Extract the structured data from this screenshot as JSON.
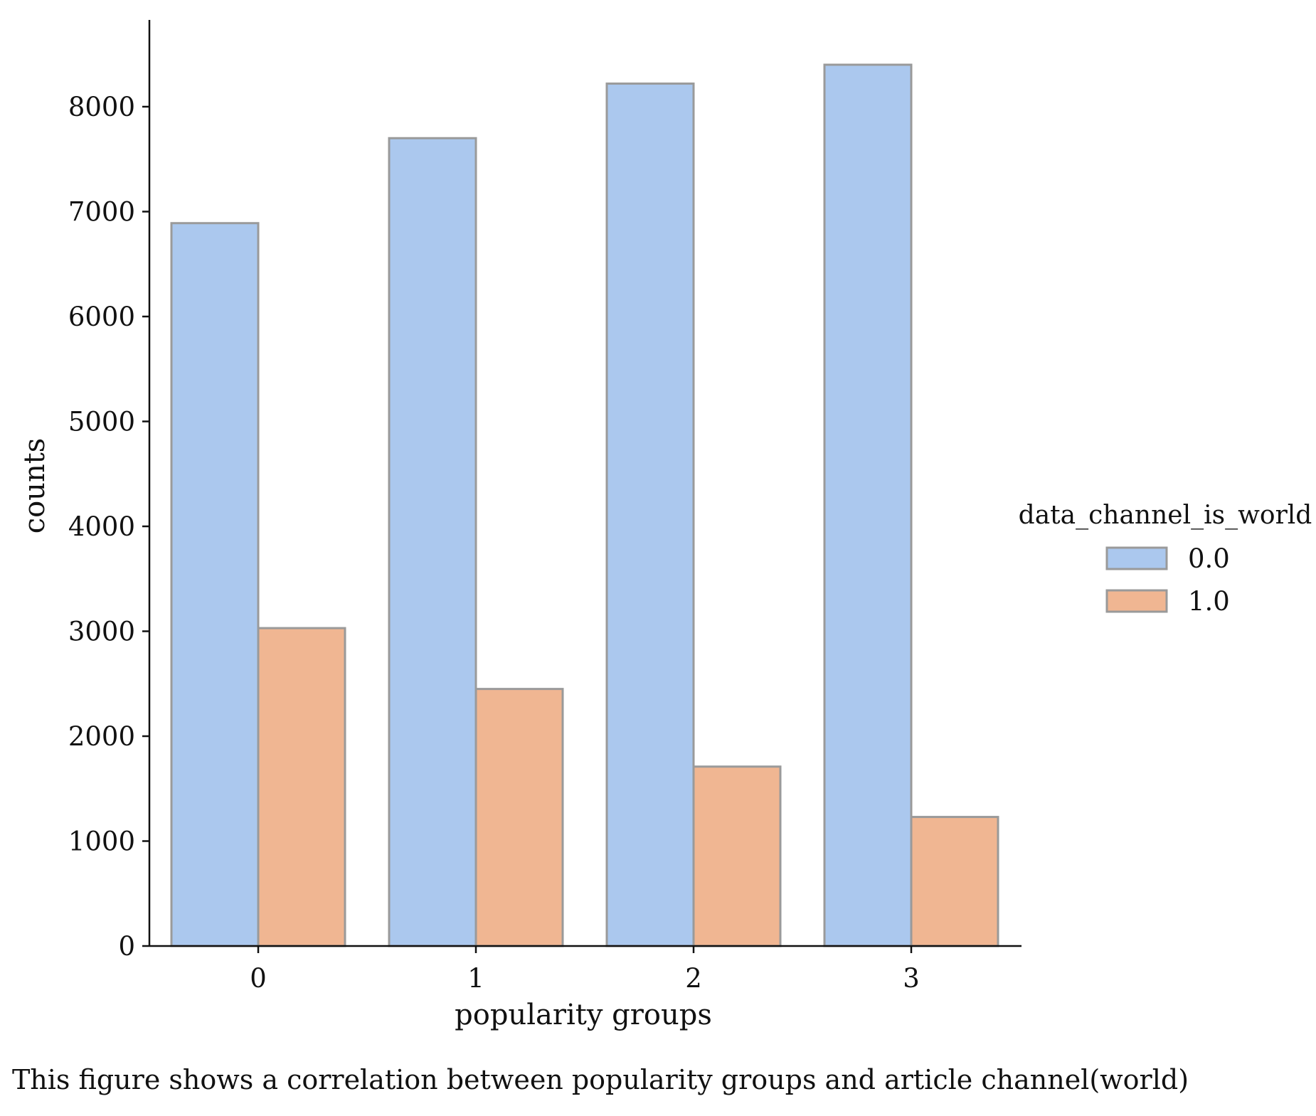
{
  "chart_data": {
    "type": "bar",
    "categories": [
      "0",
      "1",
      "2",
      "3"
    ],
    "series": [
      {
        "name": "0.0",
        "values": [
          6890,
          7700,
          8220,
          8400
        ],
        "color": "#abc8ee"
      },
      {
        "name": "1.0",
        "values": [
          3030,
          2450,
          1710,
          1230
        ],
        "color": "#f0b692"
      }
    ],
    "xlabel": "popularity groups",
    "ylabel": "counts",
    "ylim": [
      0,
      8800
    ],
    "yticks": [
      "0",
      "1000",
      "2000",
      "3000",
      "4000",
      "5000",
      "6000",
      "7000",
      "8000"
    ],
    "legend_title": "data_channel_is_world",
    "legend_position": "right",
    "grid": false,
    "bar_edge_color": "#9a9a9a",
    "caption": "This figure shows a correlation between popularity groups and article channel(world)"
  }
}
